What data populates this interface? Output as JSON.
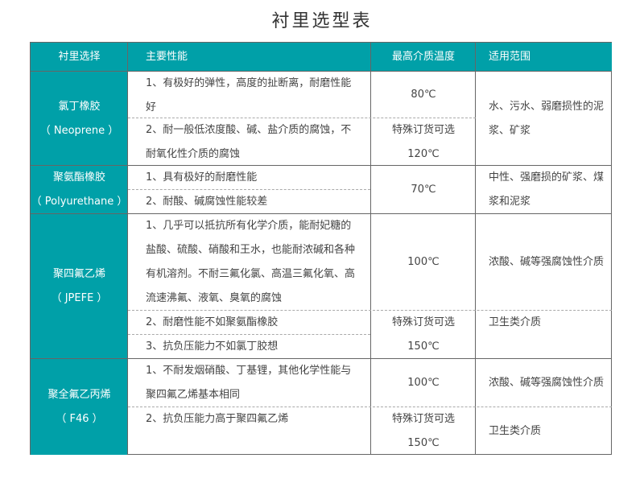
{
  "title": "衬里选型表",
  "headers": [
    "衬里选择",
    "主要性能",
    "最高介质温度",
    "适用范围"
  ],
  "rows": [
    {
      "name": "氯丁橡胶",
      "en": "（ Neoprene ）",
      "perf": [
        "1、有极好的弹性，高度的扯断离，耐磨性能好",
        "2、耐一般低浓度酸、碱、盐介质的腐蚀，不耐氧化性介质的腐蚀"
      ],
      "temp": [
        "80℃",
        "特殊订货可选",
        "120℃"
      ],
      "range": [
        "水、污水、弱磨损性的泥浆、矿浆"
      ]
    },
    {
      "name": "聚氨酯橡胶",
      "en": "（ Polyurethane ）",
      "perf": [
        "1、具有极好的耐磨性能",
        "2、耐酸、碱腐蚀性能较差"
      ],
      "temp": [
        "70℃"
      ],
      "range": [
        "中性、强磨损的矿浆、煤浆和泥浆"
      ]
    },
    {
      "name": "聚四氟乙烯",
      "en": "（ JPEFE ）",
      "perf": [
        "1、几乎可以抵抗所有化学介质，能耐妃糖的盐酸、硫酸、硝酸和王水，也能耐浓碱和各种有机溶剂。不耐三氟化氯、高温三氟化氧、高流速沸氟、液氧、臭氧的腐蚀",
        "2、耐磨性能不如聚氨酯橡胶",
        "3、抗负压能力不如氯丁胶想"
      ],
      "temp": [
        "100℃",
        "特殊订货可选",
        "150℃"
      ],
      "range": [
        "浓酸、碱等强腐蚀性介质",
        "卫生类介质"
      ]
    },
    {
      "name": "聚全氟乙丙烯",
      "en": "（ F46 ）",
      "perf": [
        "1、不耐发烟硝酸、丁基锂，其他化学性能与聚四氟乙烯基本相同",
        "2、抗负压能力高于聚四氟乙烯"
      ],
      "temp": [
        "100℃",
        "特殊订货可选",
        "150℃"
      ],
      "range": [
        "浓酸、碱等强腐蚀性介质",
        "卫生类介质"
      ]
    }
  ]
}
